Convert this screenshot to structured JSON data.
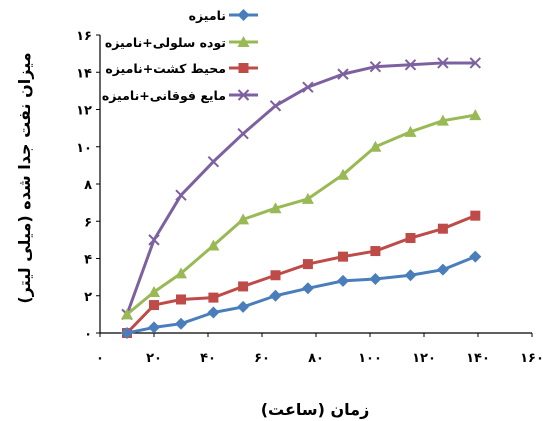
{
  "chart_data": {
    "type": "line",
    "xlabel": "زمان (ساعت)",
    "ylabel": "میزان نفت جدا شده (میلی لیتر)",
    "xlim": [
      0,
      160
    ],
    "ylim": [
      0,
      16
    ],
    "x_ticks": [
      0,
      20,
      40,
      60,
      80,
      100,
      120,
      140,
      160
    ],
    "x_tick_labels": [
      "۰",
      "۲۰",
      "۴۰",
      "۶۰",
      "۸۰",
      "۱۰۰",
      "۱۲۰",
      "۱۴۰",
      "۱۶۰"
    ],
    "y_ticks": [
      0,
      2,
      4,
      6,
      8,
      10,
      12,
      14,
      16
    ],
    "y_tick_labels": [
      "۰",
      "۲",
      "۴",
      "۶",
      "۸",
      "۱۰",
      "۱۲",
      "۱۴",
      "۱۶"
    ],
    "grid": false,
    "legend_position": "top-left",
    "series": [
      {
        "name": "نامیزه",
        "color": "#4a7ebb",
        "marker": "diamond",
        "points": [
          [
            10,
            0
          ],
          [
            20,
            0.3
          ],
          [
            30,
            0.5
          ],
          [
            42,
            1.1
          ],
          [
            53,
            1.4
          ],
          [
            65,
            2.0
          ],
          [
            77,
            2.4
          ],
          [
            90,
            2.8
          ],
          [
            102,
            2.9
          ],
          [
            115,
            3.1
          ],
          [
            127,
            3.4
          ],
          [
            139,
            4.1
          ]
        ]
      },
      {
        "name": "توده سلولی+نامیزه",
        "color": "#98b954",
        "marker": "triangle",
        "points": [
          [
            10,
            1.0
          ],
          [
            20,
            2.2
          ],
          [
            30,
            3.2
          ],
          [
            42,
            4.7
          ],
          [
            53,
            6.1
          ],
          [
            65,
            6.7
          ],
          [
            77,
            7.2
          ],
          [
            90,
            8.5
          ],
          [
            102,
            10.0
          ],
          [
            115,
            10.8
          ],
          [
            127,
            11.4
          ],
          [
            139,
            11.7
          ]
        ]
      },
      {
        "name": "محیط کشت+نامیزه",
        "color": "#be4b48",
        "marker": "square",
        "points": [
          [
            10,
            0
          ],
          [
            20,
            1.5
          ],
          [
            30,
            1.8
          ],
          [
            42,
            1.9
          ],
          [
            53,
            2.5
          ],
          [
            65,
            3.1
          ],
          [
            77,
            3.7
          ],
          [
            90,
            4.1
          ],
          [
            102,
            4.4
          ],
          [
            115,
            5.1
          ],
          [
            127,
            5.6
          ],
          [
            139,
            6.3
          ]
        ]
      },
      {
        "name": "مایع فوقانی+نامیزه",
        "color": "#7d60a0",
        "marker": "x",
        "points": [
          [
            10,
            1.0
          ],
          [
            20,
            5.0
          ],
          [
            30,
            7.4
          ],
          [
            42,
            9.2
          ],
          [
            53,
            10.7
          ],
          [
            65,
            12.2
          ],
          [
            77,
            13.2
          ],
          [
            90,
            13.9
          ],
          [
            102,
            14.3
          ],
          [
            115,
            14.4
          ],
          [
            127,
            14.5
          ],
          [
            139,
            14.5
          ]
        ]
      }
    ]
  }
}
